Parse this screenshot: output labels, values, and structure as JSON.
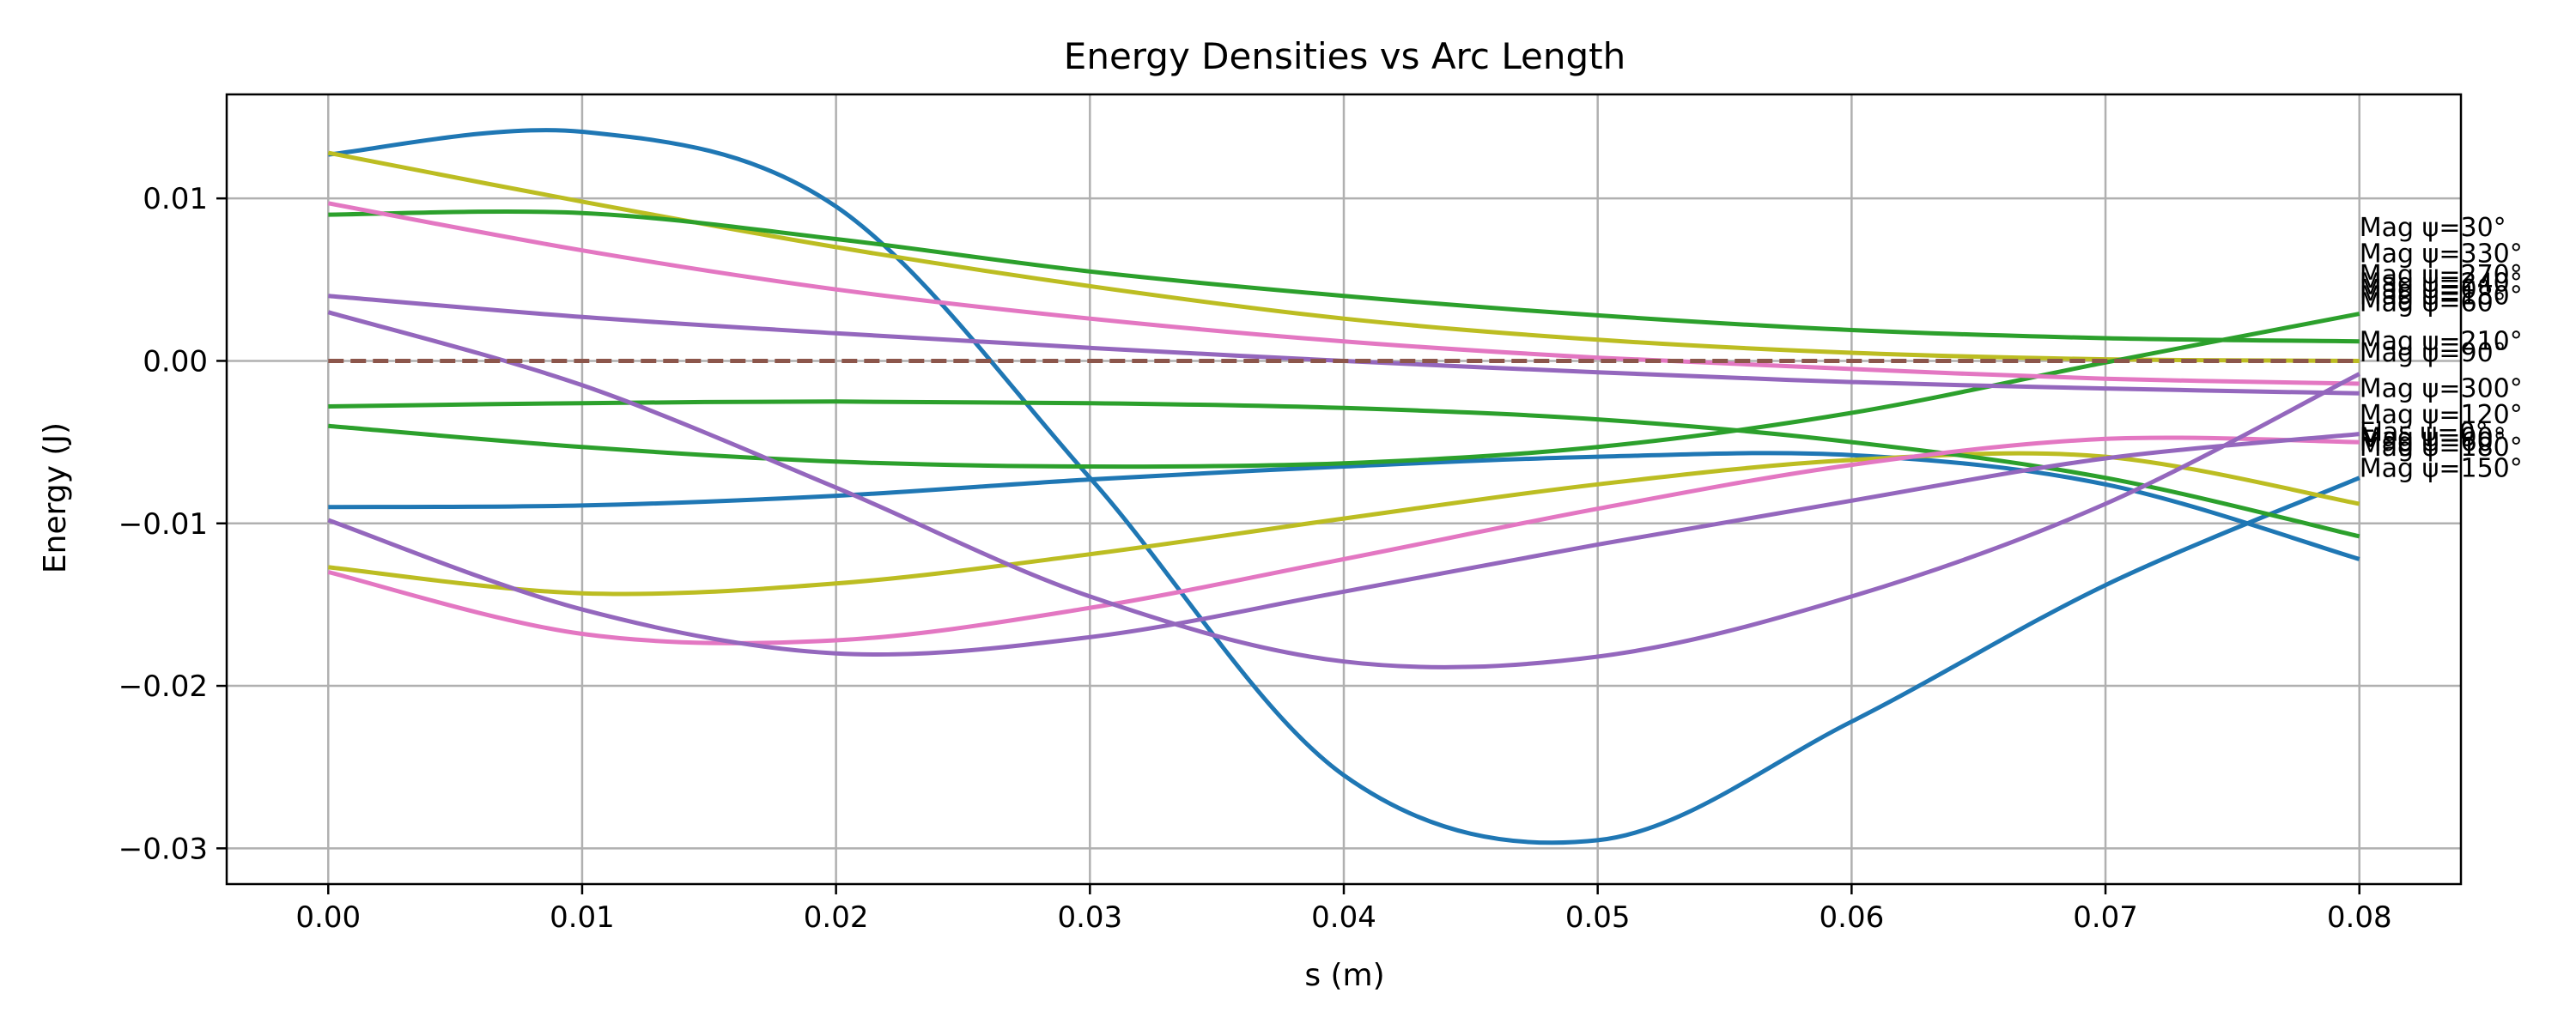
{
  "chart_data": {
    "type": "line",
    "title": "Energy Densities vs Arc Length",
    "xlabel": "s (m)",
    "ylabel": "Energy (J)",
    "xlim": [
      -0.004,
      0.084
    ],
    "ylim": [
      -0.0322,
      0.0164
    ],
    "x_ticks": [
      0.0,
      0.01,
      0.02,
      0.03,
      0.04,
      0.05,
      0.06,
      0.07,
      0.08
    ],
    "x_tick_labels": [
      "0.00",
      "0.01",
      "0.02",
      "0.03",
      "0.04",
      "0.05",
      "0.06",
      "0.07",
      "0.08"
    ],
    "y_ticks": [
      0.01,
      0.0,
      -0.01,
      -0.02,
      -0.03
    ],
    "y_tick_labels": [
      "0.01",
      "0.00",
      "−0.01",
      "−0.02",
      "−0.03"
    ],
    "grid": true,
    "x": [
      0.0,
      0.01,
      0.02,
      0.03,
      0.04,
      0.05,
      0.06,
      0.07,
      0.08
    ],
    "series": [
      {
        "name": "",
        "color": "#1f77b4",
        "dashed": false,
        "values": [
          0.0127,
          0.0141,
          0.0095,
          -0.0072,
          -0.0255,
          -0.0295,
          -0.0222,
          -0.0138,
          -0.0072
        ]
      },
      {
        "name": "",
        "color": "#1f77b4",
        "dashed": false,
        "values": [
          -0.009,
          -0.0089,
          -0.0083,
          -0.0073,
          -0.0065,
          -0.0059,
          -0.0058,
          -0.0076,
          -0.0122
        ]
      },
      {
        "name": "",
        "color": "#bcbd22",
        "dashed": false,
        "values": [
          0.0128,
          0.0098,
          0.007,
          0.0046,
          0.0026,
          0.0013,
          0.0005,
          0.0001,
          0.0
        ]
      },
      {
        "name": "",
        "color": "#bcbd22",
        "dashed": false,
        "values": [
          -0.0127,
          -0.0143,
          -0.0137,
          -0.0119,
          -0.0097,
          -0.0076,
          -0.0061,
          -0.0059,
          -0.0088
        ]
      },
      {
        "name": "",
        "color": "#2ca02c",
        "dashed": false,
        "values": [
          0.009,
          0.0091,
          0.0075,
          0.0055,
          0.004,
          0.0028,
          0.0019,
          0.0014,
          0.0012
        ]
      },
      {
        "name": "",
        "color": "#2ca02c",
        "dashed": false,
        "values": [
          -0.0028,
          -0.0026,
          -0.0025,
          -0.0026,
          -0.0029,
          -0.0036,
          -0.005,
          -0.0072,
          -0.0108
        ]
      },
      {
        "name": "",
        "color": "#2ca02c",
        "dashed": false,
        "values": [
          -0.004,
          -0.0053,
          -0.0062,
          -0.0065,
          -0.0063,
          -0.0053,
          -0.0032,
          -0.0001,
          0.0029
        ]
      },
      {
        "name": "",
        "color": "#e377c2",
        "dashed": false,
        "values": [
          0.0097,
          0.0068,
          0.0044,
          0.0026,
          0.0012,
          0.0002,
          -0.0005,
          -0.0011,
          -0.0014
        ]
      },
      {
        "name": "",
        "color": "#e377c2",
        "dashed": false,
        "values": [
          -0.013,
          -0.0168,
          -0.0172,
          -0.0152,
          -0.0122,
          -0.0091,
          -0.0064,
          -0.0048,
          -0.005
        ]
      },
      {
        "name": "",
        "color": "#9467bd",
        "dashed": false,
        "values": [
          0.004,
          0.0027,
          0.0017,
          0.0008,
          0.0,
          -0.0007,
          -0.0013,
          -0.0017,
          -0.002
        ]
      },
      {
        "name": "",
        "color": "#9467bd",
        "dashed": false,
        "values": [
          0.003,
          -0.0015,
          -0.0078,
          -0.0145,
          -0.0185,
          -0.0182,
          -0.0145,
          -0.0088,
          -0.0008
        ]
      },
      {
        "name": "",
        "color": "#9467bd",
        "dashed": false,
        "values": [
          -0.0098,
          -0.0153,
          -0.018,
          -0.017,
          -0.0142,
          -0.0113,
          -0.0086,
          -0.006,
          -0.0045
        ]
      },
      {
        "name": "",
        "color": "#8c564b",
        "dashed": true,
        "values": [
          0.0,
          0.0,
          0.0,
          0.0,
          0.0,
          0.0,
          0.0,
          0.0,
          0.0
        ]
      }
    ],
    "end_labels": [
      {
        "text": "Mag ψ=30°",
        "y": 0.0082
      },
      {
        "text": "Mag ψ=330°",
        "y": 0.0066
      },
      {
        "text": "Mag ψ=270°",
        "y": 0.0053
      },
      {
        "text": "Mag ψ=240°",
        "y": 0.0048
      },
      {
        "text": "Mag ψ=0°",
        "y": 0.0044
      },
      {
        "text": "Mag ψ=180°",
        "y": 0.004
      },
      {
        "text": "Mag ψ=60°",
        "y": 0.0036
      },
      {
        "text": "Mag ψ=210°",
        "y": 0.0012
      },
      {
        "text": "Mag ψ=90°",
        "y": 0.0005
      },
      {
        "text": "Mag ψ=300°",
        "y": -0.0017
      },
      {
        "text": "Mag ψ=120°",
        "y": -0.0033
      },
      {
        "text": "Elas ψ=0°",
        "y": -0.0044
      },
      {
        "text": "Mag ψ=90°",
        "y": -0.0047
      },
      {
        "text": "Mag ψ=60°",
        "y": -0.005
      },
      {
        "text": "Mag ψ=180°",
        "y": -0.0053
      },
      {
        "text": "Mag ψ=150°",
        "y": -0.0066
      }
    ]
  }
}
